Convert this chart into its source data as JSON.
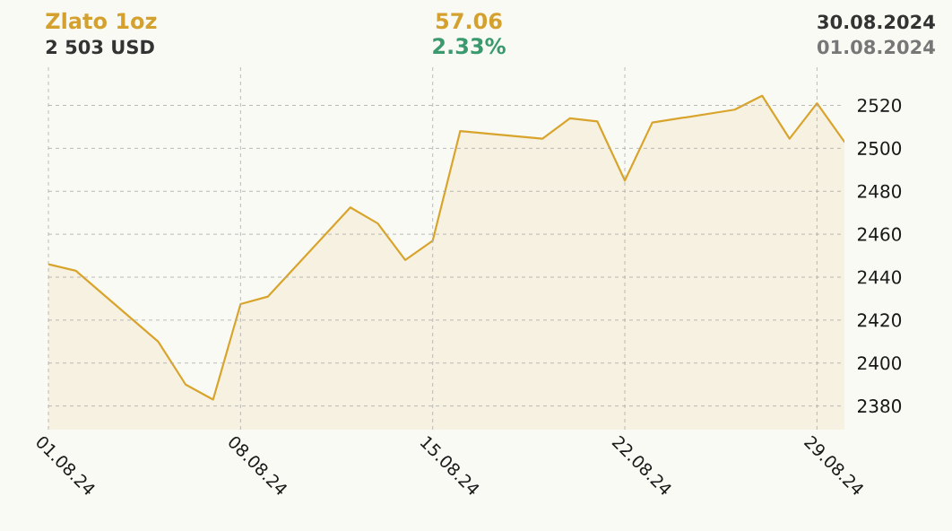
{
  "chart_data": {
    "type": "area",
    "title": "Zlato 1oz",
    "subtitle": "2 503 USD",
    "annotations": [
      "57.06",
      "2.33%",
      "30.08.2024",
      "01.08.2024"
    ],
    "x": [
      "2024-08-01",
      "2024-08-02",
      "2024-08-05",
      "2024-08-06",
      "2024-08-07",
      "2024-08-08",
      "2024-08-09",
      "2024-08-12",
      "2024-08-13",
      "2024-08-14",
      "2024-08-15",
      "2024-08-16",
      "2024-08-19",
      "2024-08-20",
      "2024-08-21",
      "2024-08-22",
      "2024-08-23",
      "2024-08-26",
      "2024-08-27",
      "2024-08-28",
      "2024-08-29",
      "2024-08-30"
    ],
    "values": [
      2446,
      2443,
      2410,
      2390,
      2383,
      2427.5,
      2431,
      2472.5,
      2465,
      2448,
      2457,
      2508,
      2504.5,
      2514,
      2512.5,
      2485,
      2512,
      2518,
      2524.5,
      2504.5,
      2521,
      2503
    ],
    "color": "#d8a42c",
    "xlim": [
      "2024-08-01",
      "2024-08-30"
    ],
    "xticks": [
      {
        "value": "2024-08-01",
        "label": "01.08.24"
      },
      {
        "value": "2024-08-08",
        "label": "08.08.24"
      },
      {
        "value": "2024-08-15",
        "label": "15.08.24"
      },
      {
        "value": "2024-08-22",
        "label": "22.08.24"
      },
      {
        "value": "2024-08-29",
        "label": "29.08.24"
      }
    ],
    "ylim": [
      2369,
      2539
    ],
    "yticks": [
      2380,
      2400,
      2420,
      2440,
      2460,
      2480,
      2500,
      2520
    ],
    "grid": true
  }
}
